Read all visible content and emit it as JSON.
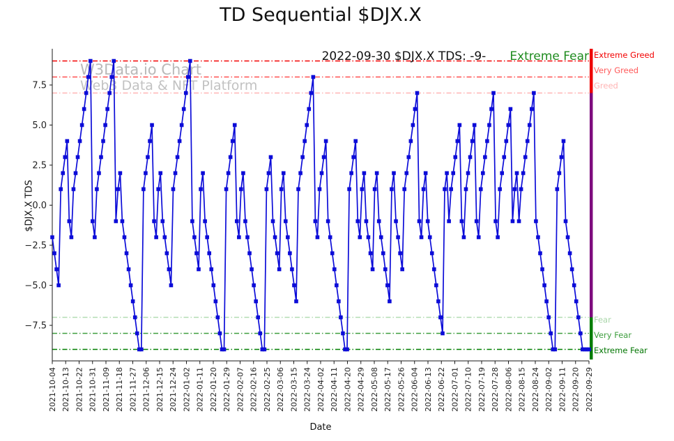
{
  "title": "TD Sequential $DJX.X",
  "watermark": {
    "line1": "W3Data.io Chart",
    "line2": "Web3 Data & NFT Platform"
  },
  "annotation": {
    "text": "2022-09-30 $DJX.X TDS: -9-",
    "sentiment": "Extreme Fear"
  },
  "chart_data": {
    "type": "line",
    "title": "TD Sequential $DJX.X",
    "xlabel": "Date",
    "ylabel": "$DJX.X TDS",
    "ylim": [
      -9.7,
      9.76
    ],
    "grid": false,
    "legend": "none",
    "line_color": "#0c0cd8",
    "marker": "square",
    "y_ticks": [
      7.5,
      5.0,
      2.5,
      0.0,
      -2.5,
      -5.0,
      -7.5
    ],
    "y_tick_labels": [
      "7.5",
      "5.0",
      "2.5",
      "0.0",
      "−2.5",
      "−5.0",
      "−7.5"
    ],
    "x_tick_labels": [
      "2021-10-04",
      "2021-10-13",
      "2021-10-22",
      "2021-10-31",
      "2021-11-09",
      "2021-11-18",
      "2021-11-27",
      "2021-12-06",
      "2021-12-15",
      "2021-12-24",
      "2022-01-02",
      "2022-01-11",
      "2022-01-20",
      "2022-01-29",
      "2022-02-07",
      "2022-02-16",
      "2022-02-25",
      "2022-03-06",
      "2022-03-15",
      "2022-03-24",
      "2022-04-02",
      "2022-04-11",
      "2022-04-20",
      "2022-04-29",
      "2022-05-08",
      "2022-05-17",
      "2022-05-26",
      "2022-06-04",
      "2022-06-13",
      "2022-06-22",
      "2022-07-01",
      "2022-07-10",
      "2022-07-19",
      "2022-07-28",
      "2022-08-06",
      "2022-08-15",
      "2022-08-24",
      "2022-09-02",
      "2022-09-11",
      "2022-09-20",
      "2022-09-29"
    ],
    "thresholds": [
      {
        "label": "Extreme Greed",
        "value": 9,
        "line_color": "#f20000",
        "label_color": "#f20000",
        "label_top": 72
      },
      {
        "label": "Very Greed",
        "value": 8,
        "line_color": "#ff4f4f",
        "label_color": "#ff5a5a",
        "label_top": 94
      },
      {
        "label": "Greed",
        "value": 7,
        "line_color": "#ffb4b4",
        "label_color": "#ffb4b4",
        "label_top": 116
      },
      {
        "label": "Fear",
        "value": -7,
        "line_color": "#b2dcb2",
        "label_color": "#a9d6a9",
        "label_top": 452
      },
      {
        "label": "Very Fear",
        "value": -8,
        "line_color": "#3f9e3f",
        "label_color": "#3f9e3f",
        "label_top": 474
      },
      {
        "label": "Extreme Fear",
        "value": -9,
        "line_color": "#007d00",
        "label_color": "#007500",
        "label_top": 496
      }
    ],
    "right_bar": [
      {
        "from": 9.76,
        "to": 7,
        "color": "#ee0000"
      },
      {
        "from": 7,
        "to": -7,
        "color": "#7d0b7d"
      },
      {
        "from": -7,
        "to": -9.7,
        "color": "#007d00"
      }
    ],
    "series": [
      {
        "name": "$DJX.X TDS",
        "values": [
          -2,
          -3,
          -4,
          -5,
          1,
          2,
          3,
          4,
          -1,
          -2,
          1,
          2,
          3,
          4,
          5,
          6,
          7,
          8,
          9,
          -1,
          -2,
          1,
          2,
          3,
          4,
          5,
          6,
          7,
          8,
          9,
          -1,
          1,
          2,
          -1,
          -2,
          -3,
          -4,
          -5,
          -6,
          -7,
          -8,
          -9,
          -9,
          1,
          2,
          3,
          4,
          5,
          -1,
          -2,
          1,
          2,
          -1,
          -2,
          -3,
          -4,
          -5,
          1,
          2,
          3,
          4,
          5,
          6,
          7,
          8,
          9,
          -1,
          -2,
          -3,
          -4,
          1,
          2,
          -1,
          -2,
          -3,
          -4,
          -5,
          -6,
          -7,
          -8,
          -9,
          -9,
          1,
          2,
          3,
          4,
          5,
          -1,
          -2,
          1,
          2,
          -1,
          -2,
          -3,
          -4,
          -5,
          -6,
          -7,
          -8,
          -9,
          -9,
          1,
          2,
          3,
          -1,
          -2,
          -3,
          -4,
          1,
          2,
          -1,
          -2,
          -3,
          -4,
          -5,
          -6,
          1,
          2,
          3,
          4,
          5,
          6,
          7,
          8,
          -1,
          -2,
          1,
          2,
          3,
          4,
          -1,
          -2,
          -3,
          -4,
          -5,
          -6,
          -7,
          -8,
          -9,
          -9,
          1,
          2,
          3,
          4,
          -1,
          -2,
          1,
          2,
          -1,
          -2,
          -3,
          -4,
          1,
          2,
          -1,
          -2,
          -3,
          -4,
          -5,
          -6,
          1,
          2,
          -1,
          -2,
          -3,
          -4,
          1,
          2,
          3,
          4,
          5,
          6,
          7,
          -1,
          -2,
          1,
          2,
          -1,
          -2,
          -3,
          -4,
          -5,
          -6,
          -7,
          -8,
          1,
          2,
          -1,
          1,
          2,
          3,
          4,
          5,
          -1,
          -2,
          1,
          2,
          3,
          4,
          5,
          -1,
          -2,
          1,
          2,
          3,
          4,
          5,
          6,
          7,
          -1,
          -2,
          1,
          2,
          3,
          4,
          5,
          6,
          -1,
          1,
          2,
          -1,
          1,
          2,
          3,
          4,
          5,
          6,
          7,
          -1,
          -2,
          -3,
          -4,
          -5,
          -6,
          -7,
          -8,
          -9,
          -9,
          1,
          2,
          3,
          4,
          -1,
          -2,
          -3,
          -4,
          -5,
          -6,
          -7,
          -8,
          -9,
          -9,
          -9,
          -9
        ]
      }
    ]
  }
}
